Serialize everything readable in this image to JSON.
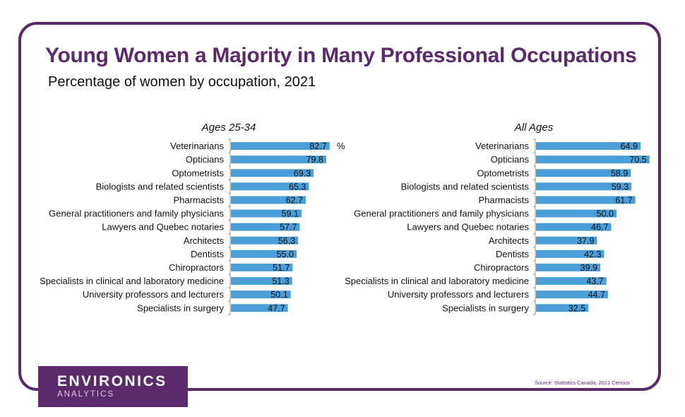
{
  "title": "Young Women a Majority in Many Professional Occupations",
  "subtitle": "Percentage of women by occupation, 2021",
  "unit_label": "%",
  "logo": {
    "main": "ENVIRONICS",
    "sub": "ANALYTICS"
  },
  "source": "Source: Statistics Canada, 2021 Census",
  "colors": {
    "bar": "#4a9fd8",
    "brand": "#5a2a6b"
  },
  "chart_data": [
    {
      "type": "bar",
      "orientation": "horizontal",
      "title": "Ages 25-34",
      "xlabel": "%",
      "xlim": [
        0,
        100
      ],
      "categories": [
        "Veterinarians",
        "Opticians",
        "Optometrists",
        "Biologists and related scientists",
        "Pharmacists",
        "General practitioners and family physicians",
        "Lawyers and Quebec notaries",
        "Architects",
        "Dentists",
        "Chiropractors",
        "Specialists in clinical and laboratory medicine",
        "University professors and lecturers",
        "Specialists in surgery"
      ],
      "values": [
        82.7,
        79.8,
        69.3,
        65.3,
        62.7,
        59.1,
        57.7,
        56.3,
        55.0,
        51.7,
        51.3,
        50.1,
        47.7
      ],
      "labels": [
        "82.7",
        "79.8",
        "69.3",
        "65.3",
        "62.7",
        "59.1",
        "57.7",
        "56.3",
        "55.0",
        "51.7",
        "51.3",
        "50.1",
        "47.7"
      ]
    },
    {
      "type": "bar",
      "orientation": "horizontal",
      "title": "All Ages",
      "xlabel": "%",
      "xlim": [
        0,
        100
      ],
      "categories": [
        "Veterinarians",
        "Opticians",
        "Optometrists",
        "Biologists and related scientists",
        "Pharmacists",
        "General practitioners and family physicians",
        "Lawyers and Quebec notaries",
        "Architects",
        "Dentists",
        "Chiropractors",
        "Specialists in clinical and laboratory medicine",
        "University professors and lecturers",
        "Specialists in surgery"
      ],
      "values": [
        64.9,
        70.5,
        58.9,
        59.3,
        61.7,
        50.0,
        46.7,
        37.9,
        42.3,
        39.9,
        43.7,
        44.7,
        32.5
      ],
      "labels": [
        "64.9",
        "70.5",
        "58.9",
        "59.3",
        "61.7",
        "50.0",
        "46.7",
        "37.9",
        "42.3",
        "39.9",
        "43.7",
        "44.7",
        "32.5"
      ]
    }
  ]
}
